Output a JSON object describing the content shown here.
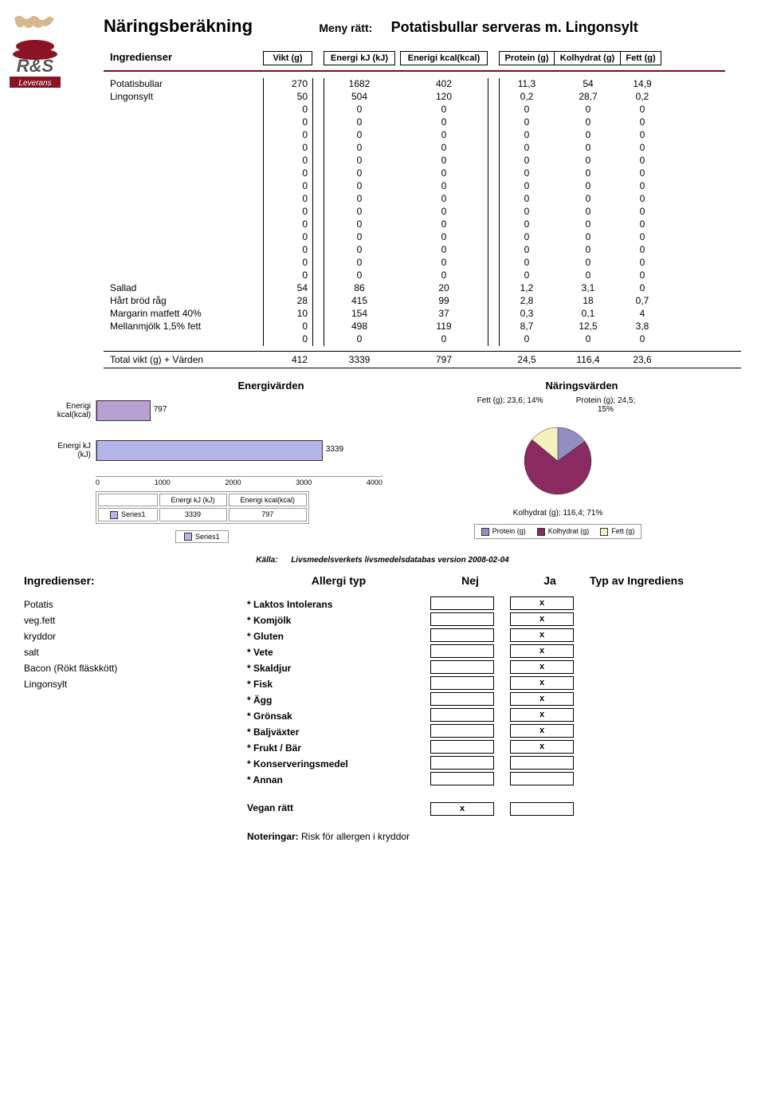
{
  "title": "Näringsberäkning",
  "meny_label": "Meny rätt:",
  "meny_val": "Potatisbullar serveras m. Lingonsylt",
  "col_headers": {
    "ingredienser": "Ingredienser",
    "vikt": "Vikt (g)",
    "kj": "Energi kJ (kJ)",
    "kcal": "Enerigi kcal(kcal)",
    "protein": "Protein (g)",
    "kolhydrat": "Kolhydrat (g)",
    "fett": "Fett (g)"
  },
  "separator_color": "#7a0e20",
  "rows": [
    {
      "name": "Potatisbullar",
      "vikt": "270",
      "kj": "1682",
      "kcal": "402",
      "prot": "11,3",
      "kol": "54",
      "fett": "14,9"
    },
    {
      "name": "Lingonsylt",
      "vikt": "50",
      "kj": "504",
      "kcal": "120",
      "prot": "0,2",
      "kol": "28,7",
      "fett": "0,2"
    },
    {
      "name": "",
      "vikt": "0",
      "kj": "0",
      "kcal": "0",
      "prot": "0",
      "kol": "0",
      "fett": "0"
    },
    {
      "name": "",
      "vikt": "0",
      "kj": "0",
      "kcal": "0",
      "prot": "0",
      "kol": "0",
      "fett": "0"
    },
    {
      "name": "",
      "vikt": "0",
      "kj": "0",
      "kcal": "0",
      "prot": "0",
      "kol": "0",
      "fett": "0"
    },
    {
      "name": "",
      "vikt": "0",
      "kj": "0",
      "kcal": "0",
      "prot": "0",
      "kol": "0",
      "fett": "0"
    },
    {
      "name": "",
      "vikt": "0",
      "kj": "0",
      "kcal": "0",
      "prot": "0",
      "kol": "0",
      "fett": "0"
    },
    {
      "name": "",
      "vikt": "0",
      "kj": "0",
      "kcal": "0",
      "prot": "0",
      "kol": "0",
      "fett": "0"
    },
    {
      "name": "",
      "vikt": "0",
      "kj": "0",
      "kcal": "0",
      "prot": "0",
      "kol": "0",
      "fett": "0"
    },
    {
      "name": "",
      "vikt": "0",
      "kj": "0",
      "kcal": "0",
      "prot": "0",
      "kol": "0",
      "fett": "0"
    },
    {
      "name": "",
      "vikt": "0",
      "kj": "0",
      "kcal": "0",
      "prot": "0",
      "kol": "0",
      "fett": "0"
    },
    {
      "name": "",
      "vikt": "0",
      "kj": "0",
      "kcal": "0",
      "prot": "0",
      "kol": "0",
      "fett": "0"
    },
    {
      "name": "",
      "vikt": "0",
      "kj": "0",
      "kcal": "0",
      "prot": "0",
      "kol": "0",
      "fett": "0"
    },
    {
      "name": "",
      "vikt": "0",
      "kj": "0",
      "kcal": "0",
      "prot": "0",
      "kol": "0",
      "fett": "0"
    },
    {
      "name": "",
      "vikt": "0",
      "kj": "0",
      "kcal": "0",
      "prot": "0",
      "kol": "0",
      "fett": "0"
    },
    {
      "name": "",
      "vikt": "0",
      "kj": "0",
      "kcal": "0",
      "prot": "0",
      "kol": "0",
      "fett": "0"
    },
    {
      "name": "Sallad",
      "vikt": "54",
      "kj": "86",
      "kcal": "20",
      "prot": "1,2",
      "kol": "3,1",
      "fett": "0"
    },
    {
      "name": "Hårt bröd råg",
      "vikt": "28",
      "kj": "415",
      "kcal": "99",
      "prot": "2,8",
      "kol": "18",
      "fett": "0,7"
    },
    {
      "name": "Margarin matfett 40%",
      "vikt": "10",
      "kj": "154",
      "kcal": "37",
      "prot": "0,3",
      "kol": "0,1",
      "fett": "4"
    },
    {
      "name": "Mellanmjölk 1,5% fett",
      "vikt": "0",
      "kj": "498",
      "kcal": "119",
      "prot": "8,7",
      "kol": "12,5",
      "fett": "3,8"
    },
    {
      "name": "",
      "vikt": "0",
      "kj": "0",
      "kcal": "0",
      "prot": "0",
      "kol": "0",
      "fett": "0"
    }
  ],
  "totals": {
    "label": "Total vikt (g) + Värden",
    "vikt": "412",
    "kj": "3339",
    "kcal": "797",
    "prot": "24,5",
    "kol": "116,4",
    "fett": "23,6"
  },
  "section_energi": "Energivärden",
  "section_naring": "Näringsvärden",
  "bar_chart": {
    "x_max": 4000,
    "ticks": [
      "0",
      "1000",
      "2000",
      "3000",
      "4000"
    ],
    "bars": [
      {
        "label": "Enerigi kcal(kcal)",
        "value": 797,
        "text": "797",
        "color": "#b9a0d3"
      },
      {
        "label": "Energi kJ (kJ)",
        "value": 3339,
        "text": "3339",
        "color": "#b4b4e6"
      }
    ],
    "legend_row_head": "Series1",
    "legend_cols": [
      "Energi kJ (kJ)",
      "Enerigi kcal(kcal)"
    ],
    "legend_vals": [
      "3339",
      "797"
    ],
    "series_label": "Series1",
    "series_color": "#b4b4e6"
  },
  "pie_chart": {
    "labels": {
      "fett": "Fett (g); 23,6; 14%",
      "protein": "Protein (g); 24,5; 15%",
      "kolhydrat": "Kolhydrat (g); 116,4; 71%"
    },
    "slices": [
      {
        "label": "Protein (g)",
        "pct": 15,
        "color": "#9090c0"
      },
      {
        "label": "Kolhydrat (g)",
        "pct": 71,
        "color": "#8a2a60"
      },
      {
        "label": "Fett (g)",
        "pct": 14,
        "color": "#f5f0c0"
      }
    ],
    "legend": [
      "Protein (g)",
      "Kolhydrat (g)",
      "Fett (g)"
    ],
    "legend_colors": [
      "#9090c0",
      "#8a2a60",
      "#f5f0c0"
    ]
  },
  "source_label": "Källa:",
  "source_text": "Livsmedelsverkets livsmedelsdatabas version 2008-02-04",
  "bottom_headers": {
    "ing": "Ingredienser:",
    "allergi": "Allergi typ",
    "nej": "Nej",
    "ja": "Ja",
    "typ": "Typ av Ingrediens"
  },
  "ing_list": [
    "Potatis",
    "veg.fett",
    "kryddor",
    "salt",
    "Bacon (Rökt fläskkött)",
    "Lingonsylt"
  ],
  "allergi_list": [
    "* Laktos Intolerans",
    "* Komjölk",
    "* Gluten",
    "* Vete",
    "* Skaldjur",
    "* Fisk",
    "* Ägg",
    "* Grönsak",
    "* Baljväxter",
    "* Frukt / Bär",
    "* Konserveringsmedel",
    "* Annan"
  ],
  "nej_marks": [
    "",
    "",
    "",
    "",
    "",
    "",
    "",
    "",
    "",
    "",
    "",
    ""
  ],
  "ja_marks": [
    "x",
    "x",
    "x",
    "x",
    "x",
    "x",
    "x",
    "x",
    "x",
    "x",
    "",
    ""
  ],
  "vegan_label": "Vegan rätt",
  "vegan_nej": "x",
  "vegan_ja": "",
  "noter_label": "Noteringar:",
  "noter_text": "Risk för allergen i kryddor",
  "logo_colors": {
    "red": "#8a1424",
    "gray": "#888"
  }
}
